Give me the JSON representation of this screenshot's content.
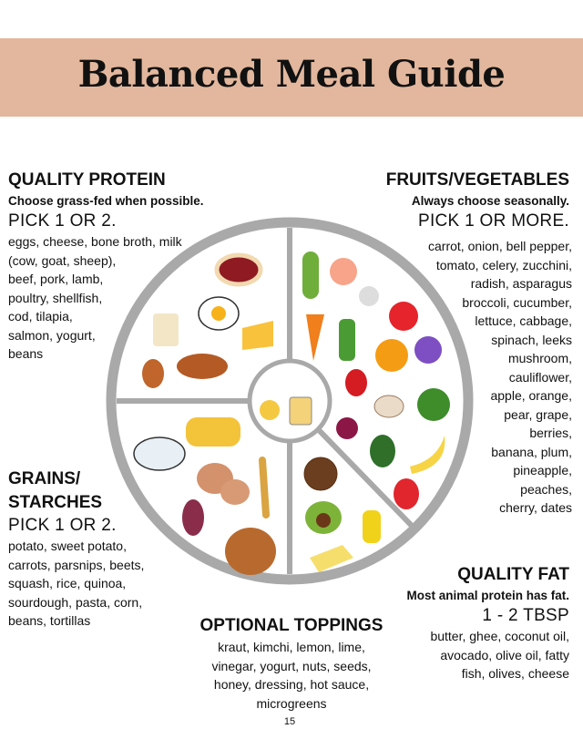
{
  "title": "Balanced Meal Guide",
  "protein": {
    "heading": "QUALITY PROTEIN",
    "note": "Choose grass-fed when possible.",
    "pick": "PICK 1 OR 2.",
    "lines": [
      "eggs, cheese, bone broth, milk",
      "(cow, goat, sheep),",
      "beef, pork, lamb,",
      "poultry, shellfish,",
      "cod, tilapia,",
      "salmon, yogurt,",
      "beans"
    ]
  },
  "fruits_vegetables": {
    "heading": "FRUITS/VEGETABLES",
    "note": "Always choose seasonally.",
    "pick": "PICK 1 OR MORE.",
    "lines": [
      "carrot, onion, bell pepper,",
      "tomato, celery, zucchini,",
      "radish, asparagus",
      "broccoli, cucumber,",
      "lettuce, cabbage,",
      "spinach, leeks",
      "mushroom,",
      "cauliflower,",
      "apple, orange,",
      "pear, grape,",
      "berries,",
      "banana, plum,",
      "pineapple,",
      "peaches,",
      "cherry, dates"
    ]
  },
  "grains": {
    "heading_lines": [
      "GRAINS/",
      "STARCHES"
    ],
    "pick": "PICK 1 OR 2.",
    "lines": [
      "potato, sweet potato,",
      "carrots, parsnips, beets,",
      "squash, rice, quinoa,",
      "sourdough, pasta, corn,",
      "beans, tortillas"
    ]
  },
  "fat": {
    "heading": "QUALITY FAT",
    "note": "Most animal protein has fat.",
    "pick": "1 - 2 TBSP",
    "lines": [
      "butter, ghee, coconut oil,",
      "avocado, olive oil, fatty",
      "fish, olives, cheese"
    ]
  },
  "toppings": {
    "heading": "OPTIONAL TOPPINGS",
    "lines": [
      "kraut, kimchi, lemon, lime,",
      "vinegar, yogurt, nuts, seeds,",
      "honey, dressing, hot sauce,",
      "microgreens"
    ]
  },
  "page_number": "15",
  "colors": {
    "header_band": "#e2b79d",
    "plate_ring": "#a9a9a9"
  }
}
